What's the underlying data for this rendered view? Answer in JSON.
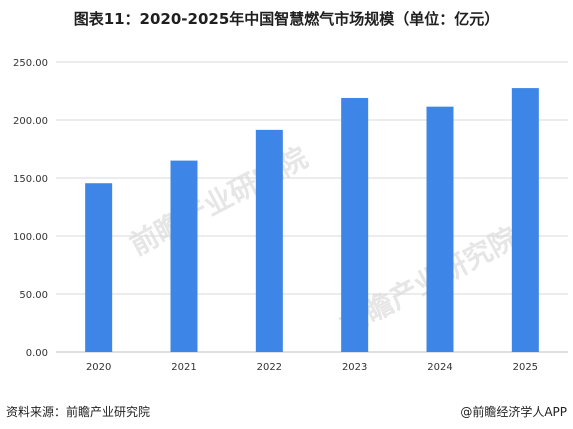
{
  "title": "图表11：2020-2025年中国智慧燃气市场规模（单位：亿元）",
  "source": "资料来源：前瞻产业研究院",
  "credit": "@前瞻经济学人APP",
  "watermark": "前瞻产业研究院",
  "colors": {
    "bar": "#3d85e6",
    "grid": "#d9d9d9"
  },
  "chart_data": {
    "type": "bar",
    "title": "图表11：2020-2025年中国智慧燃气市场规模（单位：亿元）",
    "categories": [
      "2020",
      "2021",
      "2022",
      "2023",
      "2024",
      "2025"
    ],
    "values": [
      145.5,
      165,
      191.5,
      219,
      211.5,
      227.5
    ],
    "ylim": [
      0,
      250
    ],
    "yticks": [
      "0.00",
      "50.00",
      "100.00",
      "150.00",
      "200.00",
      "250.00"
    ],
    "xlabel": "",
    "ylabel": "",
    "grid": true
  }
}
